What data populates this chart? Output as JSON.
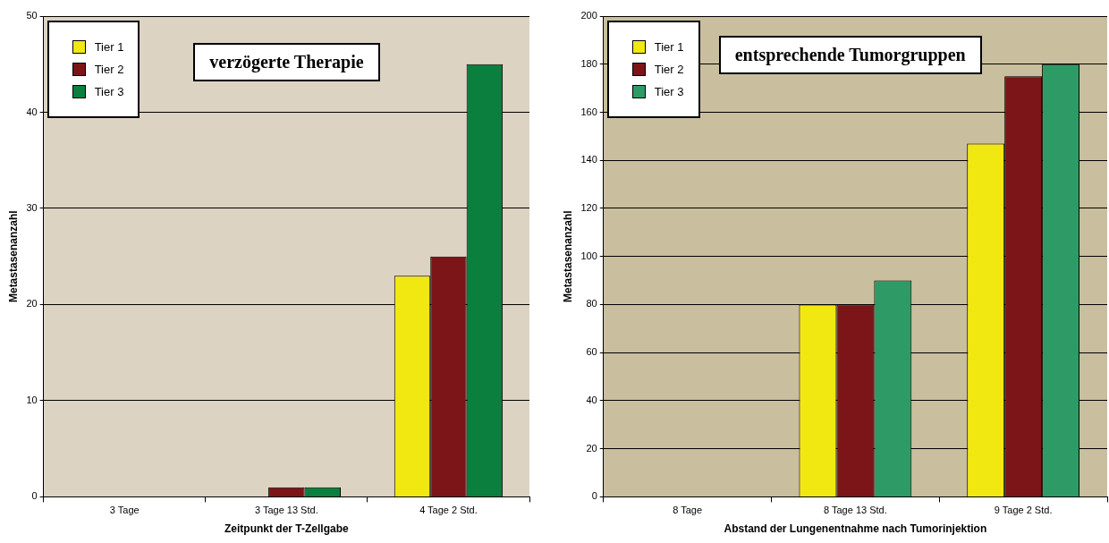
{
  "chart_data": [
    {
      "type": "bar",
      "title": "verzögerte Therapie",
      "xlabel": "Zeitpunkt der T-Zellgabe",
      "ylabel": "Metastasenanzahl",
      "categories": [
        "3 Tage",
        "3 Tage 13 Std.",
        "4 Tage 2 Std."
      ],
      "series": [
        {
          "name": "Tier 1",
          "color": "#f2e811",
          "values": [
            0,
            0,
            23
          ]
        },
        {
          "name": "Tier 2",
          "color": "#7c1517",
          "values": [
            0,
            1,
            25
          ]
        },
        {
          "name": "Tier 3",
          "color": "#0b7f3d",
          "values": [
            0,
            1,
            45
          ]
        }
      ],
      "ylim": [
        0,
        50
      ],
      "yticks": [
        0,
        10,
        20,
        30,
        40,
        50
      ],
      "grid": "y",
      "legend": "top left"
    },
    {
      "type": "bar",
      "title": "entsprechende Tumorgruppen",
      "xlabel": "Abstand der Lungenentnahme nach Tumorinjektion",
      "ylabel": "Metastasenanzahl",
      "categories": [
        "8 Tage",
        "8 Tage 13 Std.",
        "9 Tage 2 Std."
      ],
      "series": [
        {
          "name": "Tier 1",
          "color": "#f2e811",
          "values": [
            0,
            80,
            147
          ]
        },
        {
          "name": "Tier 2",
          "color": "#7c1517",
          "values": [
            0,
            80,
            175
          ]
        },
        {
          "name": "Tier 3",
          "color": "#2e9a65",
          "values": [
            0,
            90,
            180
          ]
        }
      ],
      "ylim": [
        0,
        200
      ],
      "yticks": [
        0,
        20,
        40,
        60,
        80,
        100,
        120,
        140,
        160,
        180,
        200
      ],
      "grid": "y",
      "legend": "top left"
    }
  ]
}
